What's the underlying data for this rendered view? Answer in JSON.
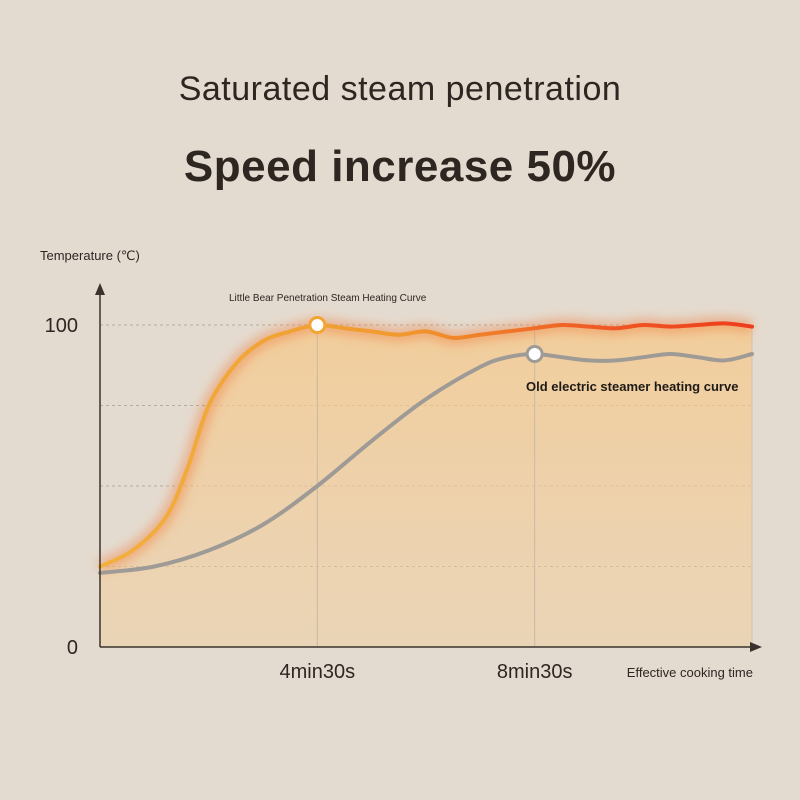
{
  "headline": {
    "line1": "Saturated steam penetration",
    "line2": "Speed increase 50%"
  },
  "chart_data": {
    "type": "line",
    "ylabel": "Temperature (℃)",
    "xlabel": "Effective cooking time",
    "ylim": [
      0,
      100
    ],
    "xlim": [
      0,
      12
    ],
    "y_ticks": [
      {
        "value": 0,
        "label": "0"
      },
      {
        "value": 100,
        "label": "100"
      }
    ],
    "x_ticks": [
      {
        "value": 4,
        "label": "4min30s"
      },
      {
        "value": 8,
        "label": "8min30s"
      }
    ],
    "gridlines_y": [
      25,
      50,
      75,
      100
    ],
    "grid": true,
    "series": [
      {
        "name": "Little Bear Penetration Steam Heating Curve",
        "color": "#f2a533",
        "end_color": "#ee3b1c",
        "x": [
          0,
          0.6,
          1.2,
          1.6,
          2.0,
          2.5,
          3.0,
          3.5,
          4.0,
          4.5,
          5.0,
          5.5,
          6.0,
          6.5,
          7.0,
          7.5,
          8.0,
          8.5,
          9.0,
          9.5,
          10.0,
          10.5,
          11.0,
          11.5,
          12.0
        ],
        "values": [
          25,
          30,
          40,
          55,
          75,
          88,
          95,
          98,
          100,
          99,
          98,
          97,
          98,
          96,
          97,
          98,
          99,
          100,
          99.5,
          99,
          100,
          99.5,
          100,
          100.5,
          99.5
        ]
      },
      {
        "name": "Old electric steamer heating curve",
        "color": "#9e9a96",
        "x": [
          0,
          1.0,
          2.0,
          3.0,
          4.0,
          5.0,
          6.0,
          7.0,
          7.5,
          8.0,
          8.5,
          9.0,
          9.5,
          10.0,
          10.5,
          11.0,
          11.5,
          12.0
        ],
        "values": [
          23,
          25,
          30,
          38,
          50,
          64,
          77,
          87,
          90,
          91,
          90,
          89,
          89,
          90,
          91,
          90,
          89,
          91
        ]
      }
    ],
    "annotations": [
      {
        "text": "Little Bear Penetration Steam Heating Curve",
        "x": 4,
        "y": 100,
        "marker": "orange"
      },
      {
        "text": "Old electric steamer heating curve",
        "x": 8,
        "y": 91,
        "marker": "gray"
      }
    ]
  }
}
